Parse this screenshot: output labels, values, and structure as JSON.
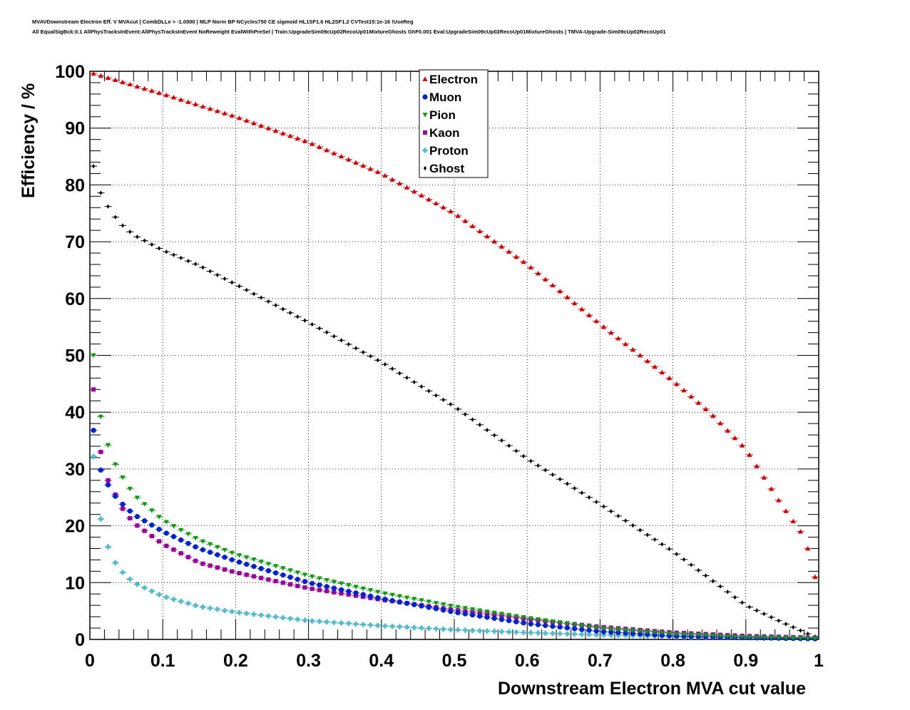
{
  "title_lines": [
    "MVAVDownstream Electron Eff. V MVAcut | CombDLLe > -1.0000 | MLP Norm BP NCycles750 CE sigmoid HL1SF1.6 HL2SF1.2 CVTest15:1e-16 !UseReg",
    "All EqualSigBck:0.1 AllPhysTracksInEvent:AllPhysTracksInEvent NoReweight EvalWithPreSel | Train:UpgradeSim09cUp02RecoUp01MixtureGhosts GhF0.001 Eval:UpgradeSim09cUp02RecoUp01MixtureGhosts | TMVA-Upgrade-Sim09cUp02RecoUp01"
  ],
  "chart_data": {
    "type": "scatter",
    "xlabel": "Downstream Electron MVA cut value",
    "ylabel": "Efficiency / %",
    "xlim": [
      0,
      1
    ],
    "ylim": [
      0,
      100
    ],
    "xticks": [
      "0",
      "0.1",
      "0.2",
      "0.3",
      "0.4",
      "0.5",
      "0.6",
      "0.7",
      "0.8",
      "0.9",
      "1"
    ],
    "yticks": [
      "0",
      "10",
      "20",
      "30",
      "40",
      "50",
      "60",
      "70",
      "80",
      "90",
      "100"
    ],
    "grid": true,
    "legend_position": "top-center",
    "x_sampling": {
      "start": 0.005,
      "step": 0.01,
      "count": 100
    },
    "series": [
      {
        "name": "Electron",
        "color": "#cc0000",
        "marker": "triangle-up",
        "anchors": [
          [
            0.005,
            99.6
          ],
          [
            0.1,
            96.0
          ],
          [
            0.2,
            92.0
          ],
          [
            0.3,
            87.5
          ],
          [
            0.4,
            82.0
          ],
          [
            0.5,
            75.0
          ],
          [
            0.6,
            66.0
          ],
          [
            0.7,
            55.5
          ],
          [
            0.8,
            45.5
          ],
          [
            0.85,
            40.0
          ],
          [
            0.9,
            33.5
          ],
          [
            0.95,
            23.5
          ],
          [
            0.975,
            19.0
          ],
          [
            0.985,
            16.0
          ],
          [
            0.995,
            11.0
          ]
        ]
      },
      {
        "name": "Muon",
        "color": "#0022cc",
        "marker": "circle",
        "anchors": [
          [
            0.005,
            36.8
          ],
          [
            0.015,
            29.8
          ],
          [
            0.025,
            27.2
          ],
          [
            0.035,
            25.2
          ],
          [
            0.045,
            23.8
          ],
          [
            0.06,
            22.0
          ],
          [
            0.1,
            19.0
          ],
          [
            0.15,
            16.0
          ],
          [
            0.2,
            13.8
          ],
          [
            0.3,
            10.0
          ],
          [
            0.4,
            7.2
          ],
          [
            0.5,
            4.8
          ],
          [
            0.6,
            2.8
          ],
          [
            0.7,
            1.4
          ],
          [
            0.8,
            0.6
          ],
          [
            0.9,
            0.3
          ],
          [
            0.995,
            0.1
          ]
        ]
      },
      {
        "name": "Pion",
        "color": "#119911",
        "marker": "triangle-down",
        "anchors": [
          [
            0.005,
            50.0
          ],
          [
            0.015,
            39.2
          ],
          [
            0.025,
            34.2
          ],
          [
            0.035,
            30.8
          ],
          [
            0.045,
            28.5
          ],
          [
            0.06,
            25.5
          ],
          [
            0.1,
            21.0
          ],
          [
            0.15,
            17.5
          ],
          [
            0.2,
            15.0
          ],
          [
            0.3,
            11.2
          ],
          [
            0.4,
            8.2
          ],
          [
            0.5,
            5.8
          ],
          [
            0.6,
            3.8
          ],
          [
            0.7,
            2.0
          ],
          [
            0.8,
            1.0
          ],
          [
            0.9,
            0.4
          ],
          [
            0.995,
            0.2
          ]
        ]
      },
      {
        "name": "Kaon",
        "color": "#990099",
        "marker": "square",
        "anchors": [
          [
            0.005,
            44.0
          ],
          [
            0.015,
            33.0
          ],
          [
            0.025,
            28.0
          ],
          [
            0.035,
            25.5
          ],
          [
            0.045,
            23.0
          ],
          [
            0.06,
            20.5
          ],
          [
            0.1,
            16.8
          ],
          [
            0.15,
            13.5
          ],
          [
            0.2,
            11.8
          ],
          [
            0.3,
            9.0
          ],
          [
            0.4,
            7.0
          ],
          [
            0.5,
            5.2
          ],
          [
            0.6,
            3.6
          ],
          [
            0.7,
            2.2
          ],
          [
            0.8,
            1.2
          ],
          [
            0.9,
            0.6
          ],
          [
            0.995,
            0.3
          ]
        ]
      },
      {
        "name": "Proton",
        "color": "#55bbcc",
        "marker": "cross",
        "anchors": [
          [
            0.005,
            32.2
          ],
          [
            0.015,
            21.2
          ],
          [
            0.025,
            16.3
          ],
          [
            0.035,
            13.5
          ],
          [
            0.045,
            11.8
          ],
          [
            0.06,
            10.0
          ],
          [
            0.1,
            7.6
          ],
          [
            0.15,
            5.8
          ],
          [
            0.2,
            4.8
          ],
          [
            0.3,
            3.3
          ],
          [
            0.4,
            2.4
          ],
          [
            0.5,
            1.7
          ],
          [
            0.6,
            1.2
          ],
          [
            0.7,
            0.8
          ],
          [
            0.8,
            0.5
          ],
          [
            0.9,
            0.3
          ],
          [
            0.995,
            0.2
          ]
        ]
      },
      {
        "name": "Ghost",
        "color": "#000000",
        "marker": "diamond",
        "anchors": [
          [
            0.005,
            83.3
          ],
          [
            0.015,
            78.6
          ],
          [
            0.025,
            76.2
          ],
          [
            0.04,
            73.4
          ],
          [
            0.06,
            71.2
          ],
          [
            0.1,
            68.5
          ],
          [
            0.15,
            65.8
          ],
          [
            0.2,
            62.5
          ],
          [
            0.3,
            55.8
          ],
          [
            0.4,
            48.8
          ],
          [
            0.5,
            41.0
          ],
          [
            0.6,
            31.8
          ],
          [
            0.7,
            23.8
          ],
          [
            0.8,
            15.5
          ],
          [
            0.9,
            6.0
          ],
          [
            0.95,
            3.0
          ],
          [
            0.985,
            1.0
          ],
          [
            0.995,
            0.5
          ]
        ]
      }
    ]
  }
}
